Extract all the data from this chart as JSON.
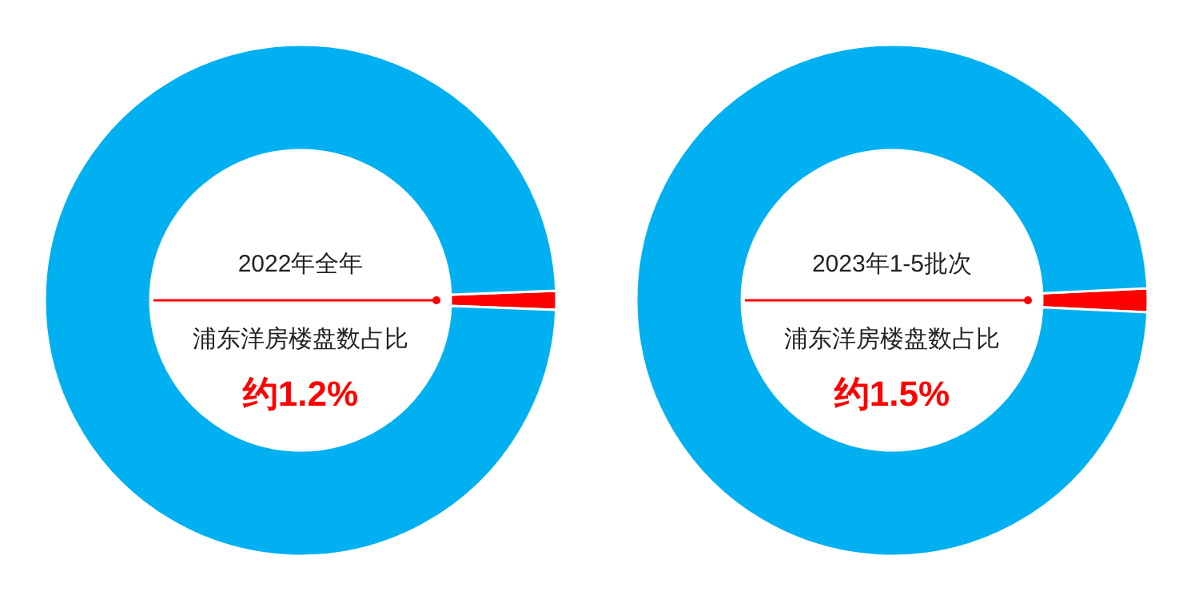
{
  "chart_data": [
    {
      "type": "donut",
      "title": "2022年全年",
      "subtitle": "浦东洋房楼盘数占比",
      "categories": [
        null,
        null
      ],
      "values": [
        1.2,
        98.8
      ],
      "colors": [
        "#ff0000",
        "#00b0f0"
      ],
      "annotations": [
        "约1.2%"
      ]
    },
    {
      "type": "donut",
      "title": "2023年1-5批次",
      "subtitle": "浦东洋房楼盘数占比",
      "categories": [
        null,
        null
      ],
      "values": [
        1.5,
        98.5
      ],
      "colors": [
        "#ff0000",
        "#00b0f0"
      ],
      "annotations": [
        "约1.5%"
      ]
    }
  ]
}
